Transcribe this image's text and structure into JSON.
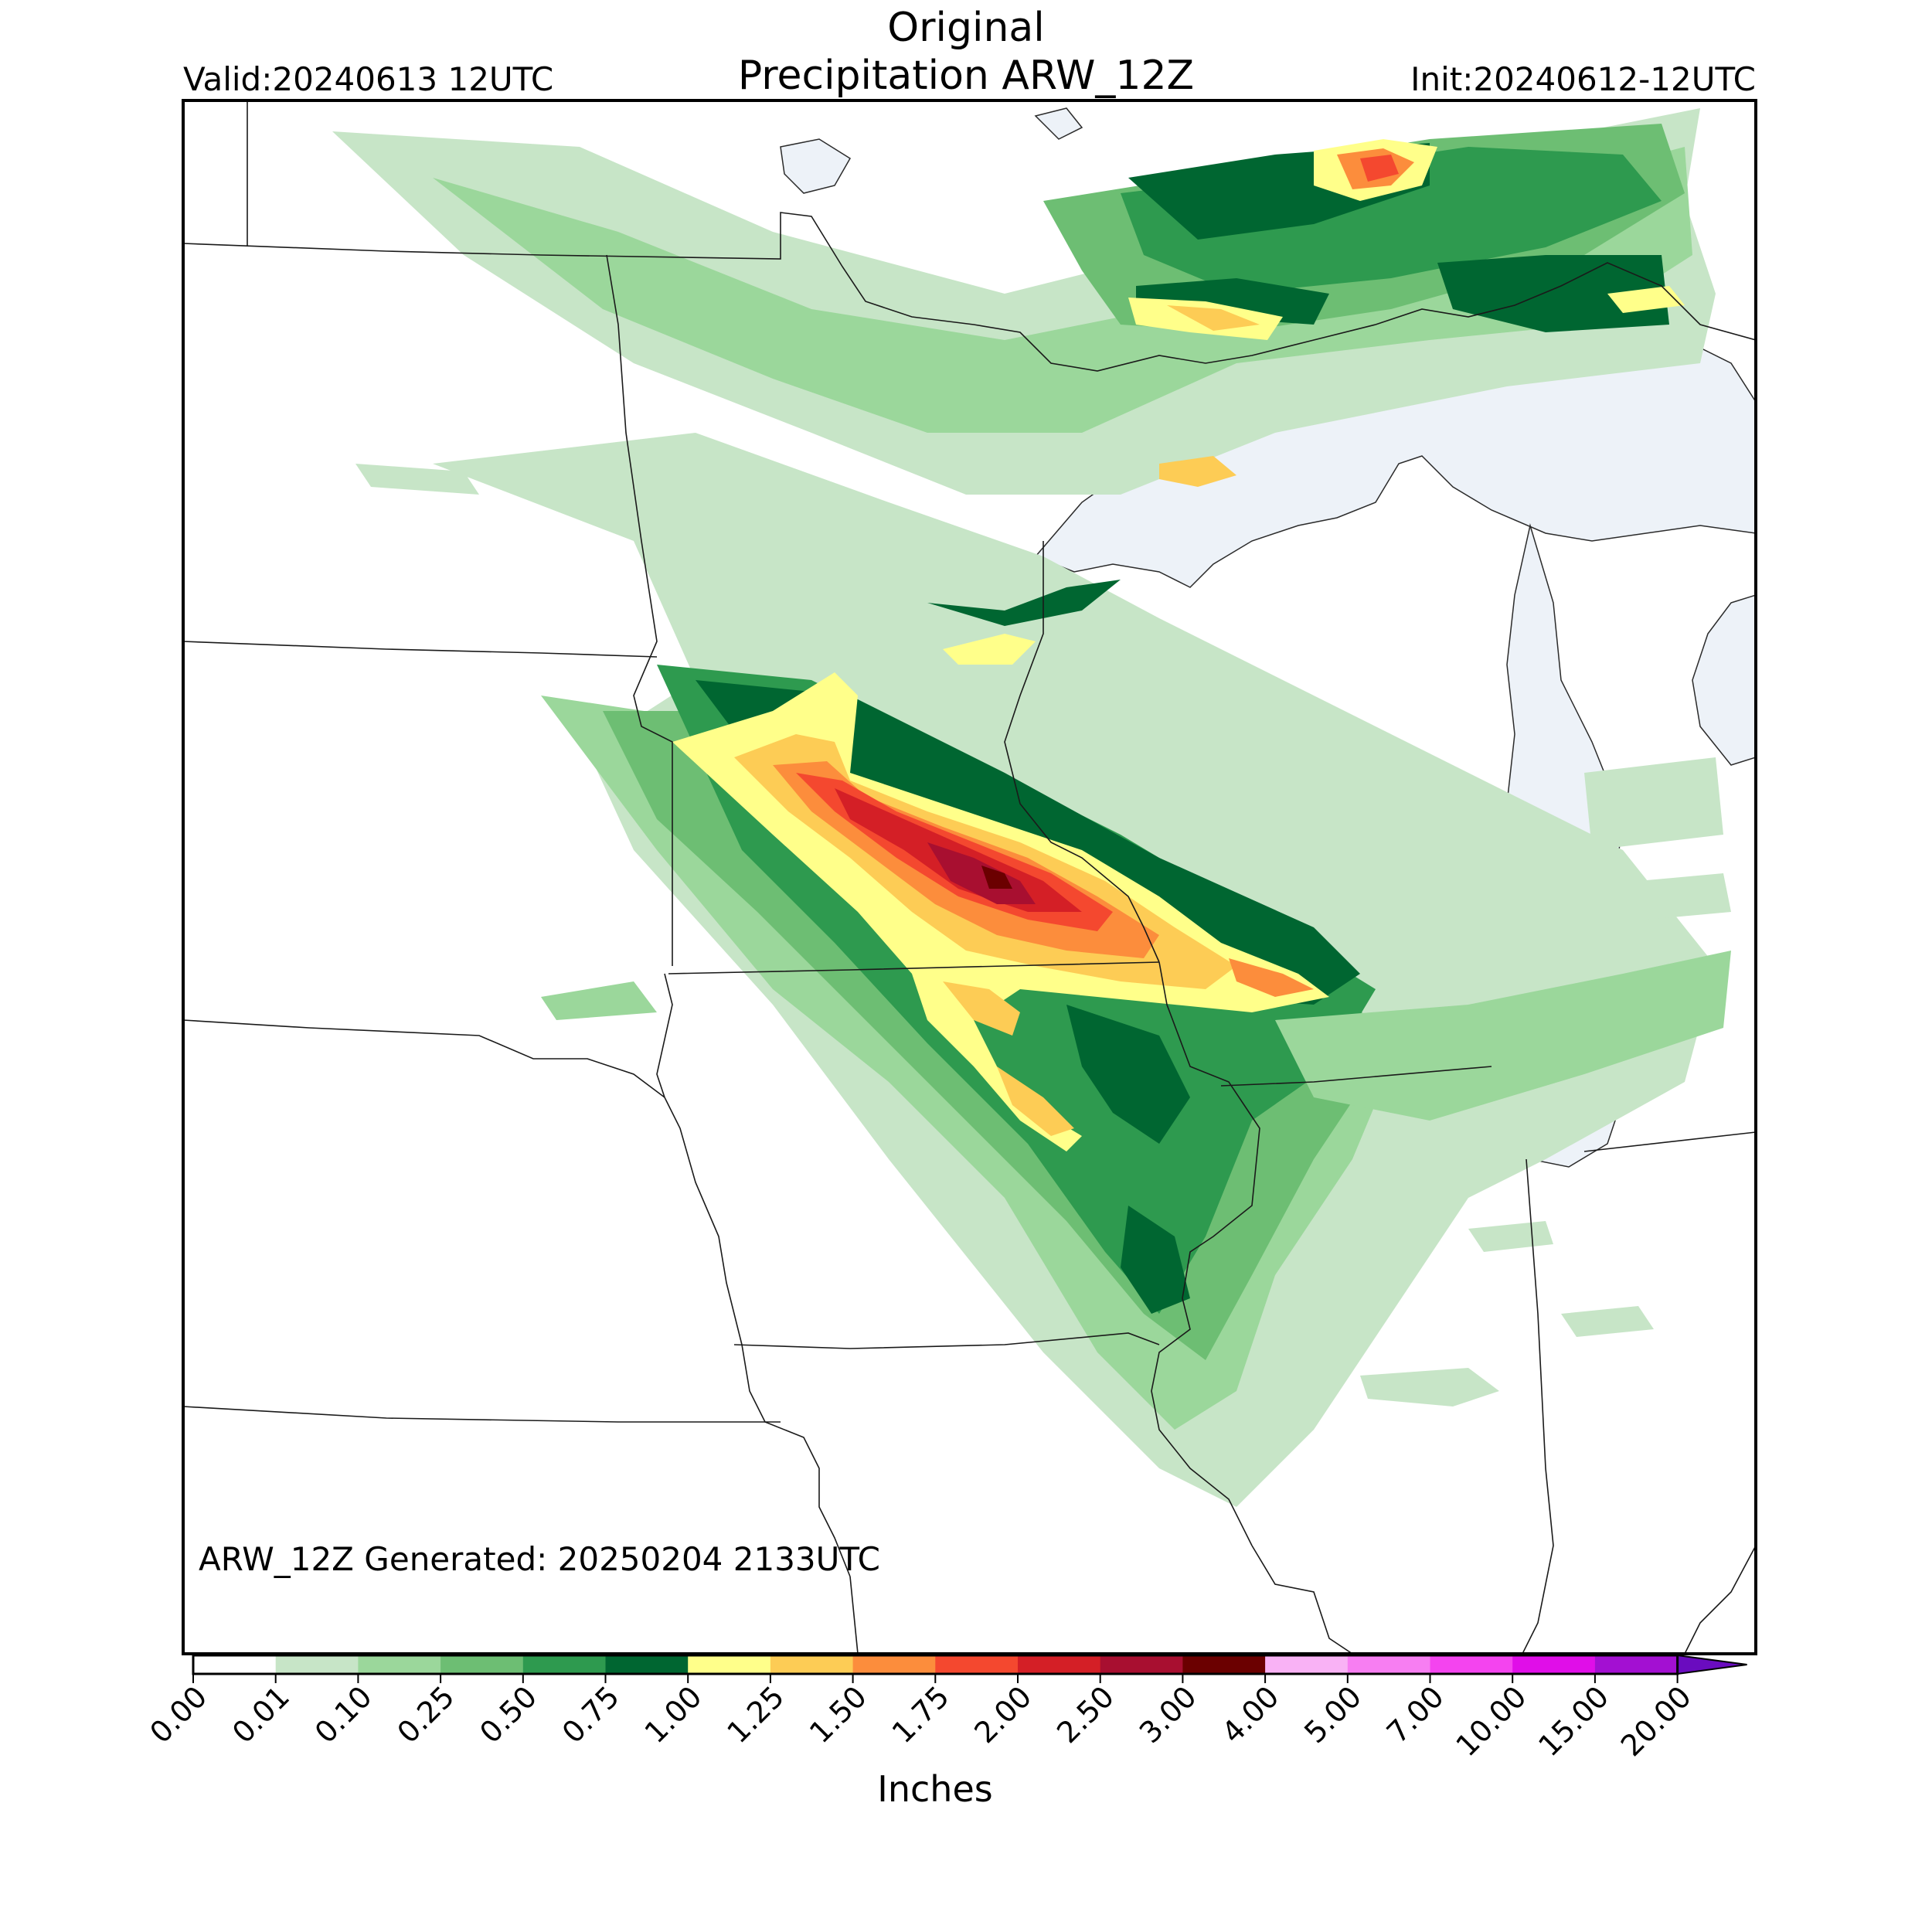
{
  "header": {
    "title_line1": "Original",
    "title_line2": "Precipitation ARW_12Z",
    "valid": "Valid:20240613 12UTC",
    "init": "Init:20240612-12UTC"
  },
  "map": {
    "generated_note": "ARW_12Z Generated: 20250204 2133UTC"
  },
  "colorbar": {
    "label": "Inches",
    "levels": [
      "0.00",
      "0.01",
      "0.10",
      "0.25",
      "0.50",
      "0.75",
      "1.00",
      "1.25",
      "1.50",
      "1.75",
      "2.00",
      "2.50",
      "3.00",
      "4.00",
      "5.00",
      "7.00",
      "10.00",
      "15.00",
      "20.00"
    ],
    "colors": [
      "#ffffff",
      "#c7e5c7",
      "#9bd79b",
      "#6dbe73",
      "#2e9a4f",
      "#006631",
      "#ffff8a",
      "#fdcc55",
      "#fc8d3c",
      "#f4482f",
      "#d41f26",
      "#a80f30",
      "#6b0000",
      "#f9b2f5",
      "#f77ef2",
      "#f444ef",
      "#e00ee8",
      "#a310d2"
    ],
    "extend_color": "#6a0cbf"
  }
}
